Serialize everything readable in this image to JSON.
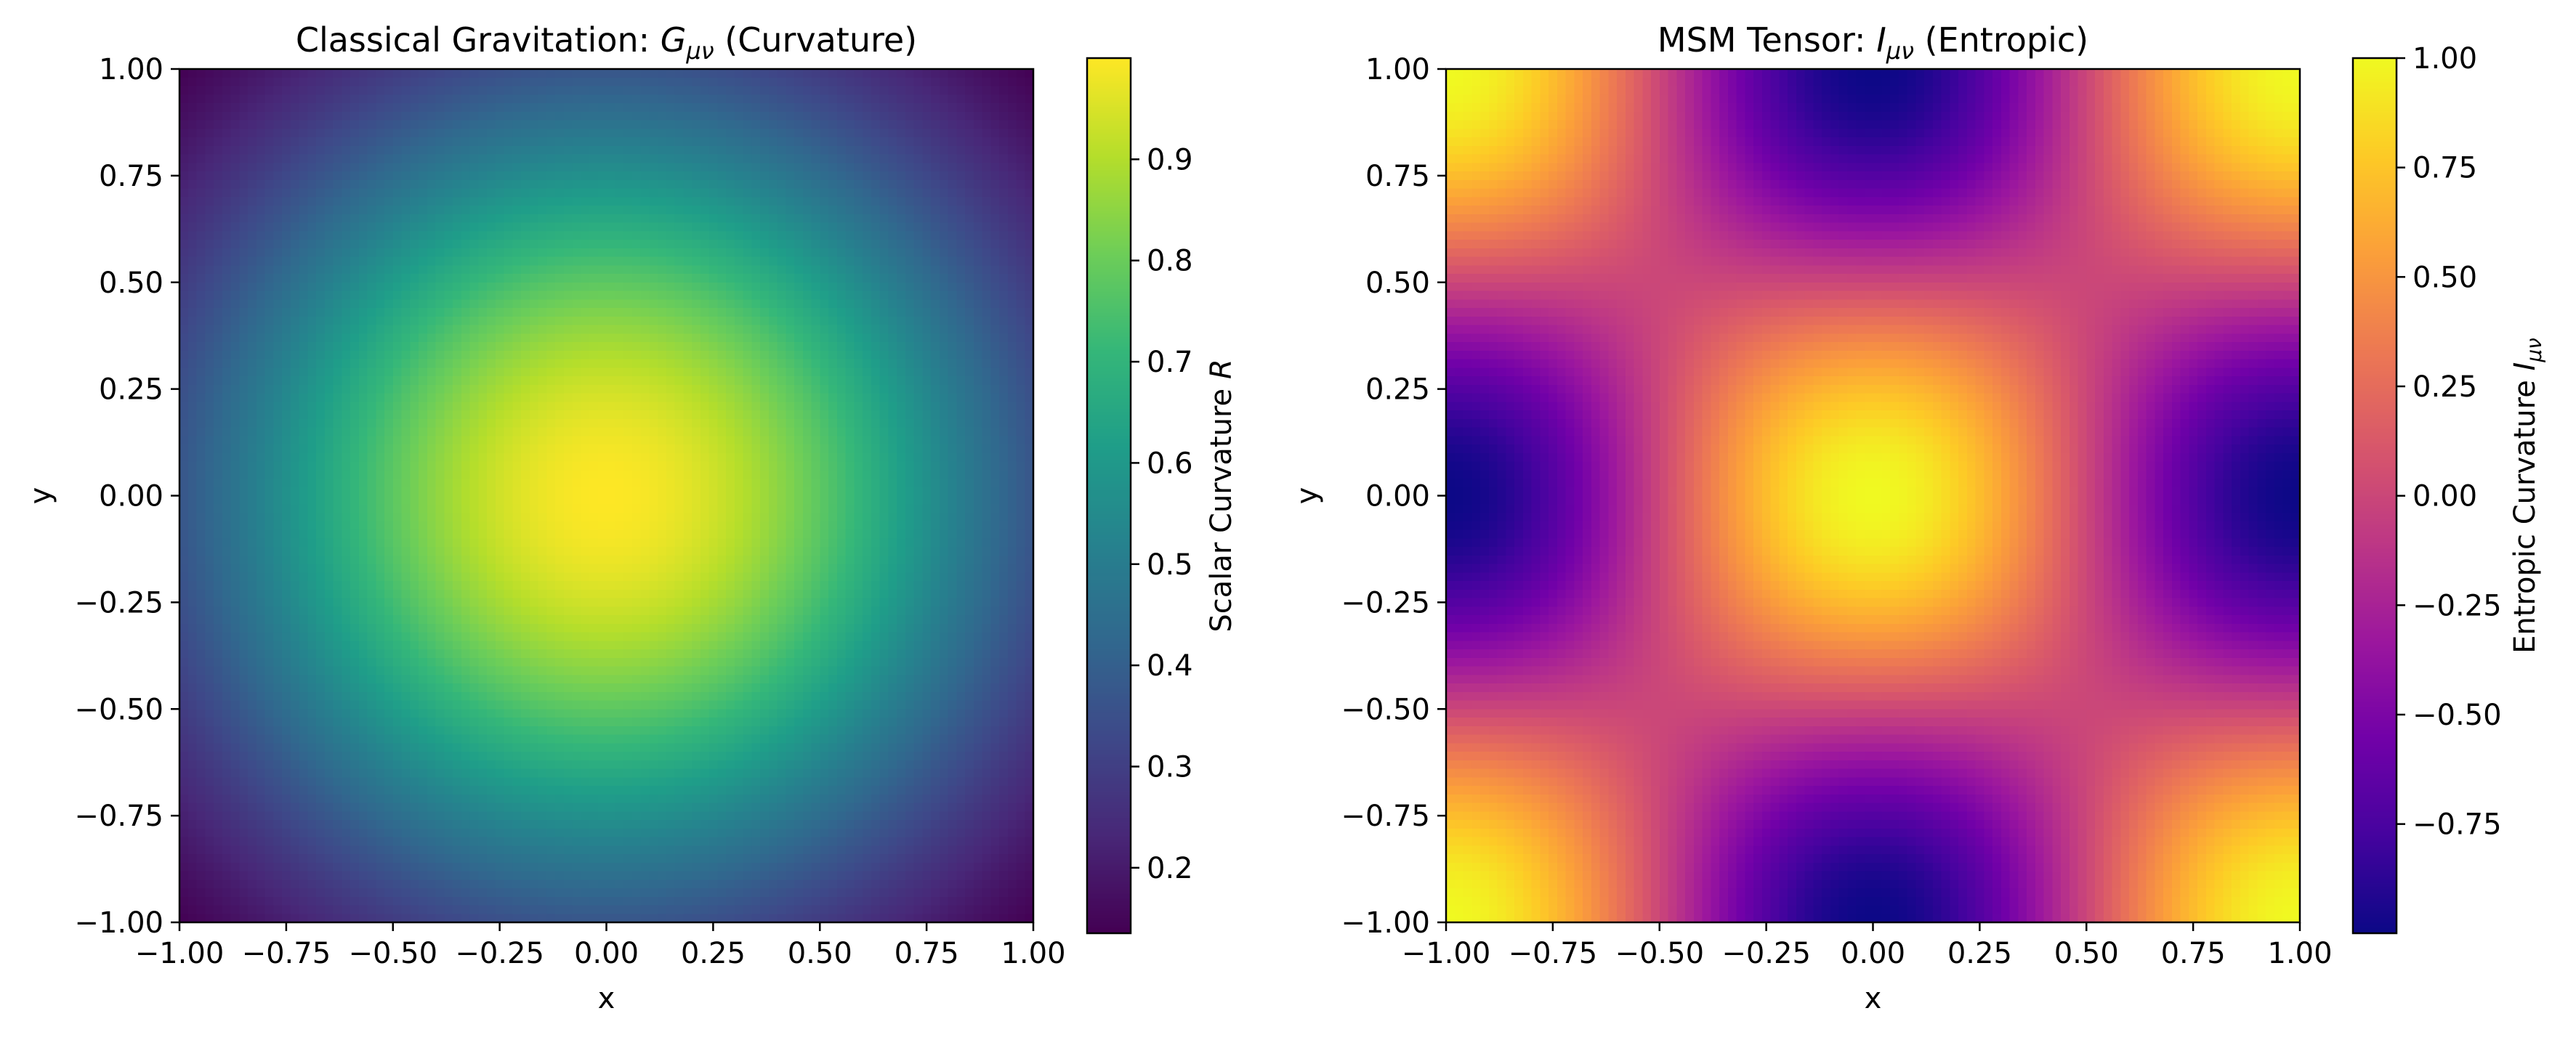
{
  "chart_data": [
    {
      "type": "heatmap",
      "title": "Classical Gravitation: Gμν (Curvature)",
      "title_prefix": "Classical Gravitation: ",
      "title_symbol": "G",
      "title_subscript": "μν",
      "title_suffix": " (Curvature)",
      "xlabel": "x",
      "ylabel": "y",
      "xlim": [
        -1.0,
        1.0
      ],
      "ylim": [
        -1.0,
        1.0
      ],
      "x_ticks": [
        -1.0,
        -0.75,
        -0.5,
        -0.25,
        0.0,
        0.25,
        0.5,
        0.75,
        1.0
      ],
      "x_tick_labels": [
        "−1.00",
        "−0.75",
        "−0.50",
        "−0.25",
        "0.00",
        "0.25",
        "0.50",
        "0.75",
        "1.00"
      ],
      "y_ticks": [
        1.0,
        0.75,
        0.5,
        0.25,
        0.0,
        -0.25,
        -0.5,
        -0.75,
        -1.0
      ],
      "y_tick_labels": [
        "1.00",
        "0.75",
        "0.50",
        "0.25",
        "0.00",
        "−0.25",
        "−0.50",
        "−0.75",
        "−1.00"
      ],
      "colormap": "viridis",
      "function": "exp(-(x^2 + y^2))",
      "grid_resolution": 100,
      "colorbar": {
        "label": "Scalar Curvature R",
        "label_text": "Scalar Curvature ",
        "label_symbol": "R",
        "range": [
          0.1353,
          1.0
        ],
        "ticks": [
          0.9,
          0.8,
          0.7,
          0.6,
          0.5,
          0.4,
          0.3,
          0.2
        ],
        "tick_labels": [
          "0.9",
          "0.8",
          "0.7",
          "0.6",
          "0.5",
          "0.4",
          "0.3",
          "0.2"
        ]
      },
      "grid": false
    },
    {
      "type": "heatmap",
      "title": "MSM Tensor: Iμν (Entropic)",
      "title_prefix": "MSM Tensor: ",
      "title_symbol": "I",
      "title_subscript": "μν",
      "title_suffix": " (Entropic)",
      "xlabel": "x",
      "ylabel": "y",
      "xlim": [
        -1.0,
        1.0
      ],
      "ylim": [
        -1.0,
        1.0
      ],
      "x_ticks": [
        -1.0,
        -0.75,
        -0.5,
        -0.25,
        0.0,
        0.25,
        0.5,
        0.75,
        1.0
      ],
      "x_tick_labels": [
        "−1.00",
        "−0.75",
        "−0.50",
        "−0.25",
        "0.00",
        "0.25",
        "0.50",
        "0.75",
        "1.00"
      ],
      "y_ticks": [
        1.0,
        0.75,
        0.5,
        0.25,
        0.0,
        -0.25,
        -0.5,
        -0.75,
        -1.0
      ],
      "y_tick_labels": [
        "1.00",
        "0.75",
        "0.50",
        "0.25",
        "0.00",
        "−0.25",
        "−0.50",
        "−0.75",
        "−1.00"
      ],
      "colormap": "plasma",
      "function": "cos(pi x) * cos(pi y)",
      "grid_resolution": 100,
      "colorbar": {
        "label": "Entropic Curvature Iμν",
        "label_text": "Entropic Curvature ",
        "label_symbol": "I",
        "label_subscript": "μν",
        "range": [
          -0.9995,
          1.0
        ],
        "ticks": [
          1.0,
          0.75,
          0.5,
          0.25,
          0.0,
          -0.25,
          -0.5,
          -0.75
        ],
        "tick_labels": [
          "1.00",
          "0.75",
          "0.50",
          "0.25",
          "0.00",
          "−0.25",
          "−0.50",
          "−0.75"
        ]
      },
      "grid": false
    }
  ]
}
